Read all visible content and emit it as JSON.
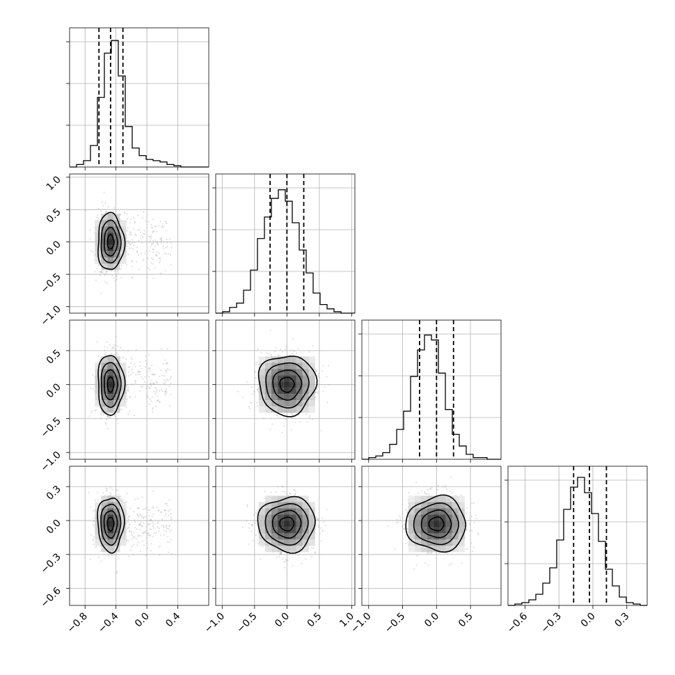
{
  "chart_data": {
    "type": "corner",
    "grid": true,
    "parameters": [
      {
        "range": [
          -1.0,
          0.8
        ],
        "ticks": [
          -0.8,
          -0.4,
          0.0,
          0.4
        ],
        "tick_labels": [
          "−0.8",
          "−0.4",
          "0.0",
          "0.4"
        ],
        "quantiles": [
          -0.62,
          -0.47,
          -0.31
        ]
      },
      {
        "range": [
          -1.1,
          1.05
        ],
        "ticks": [
          -1.0,
          -0.5,
          0.0,
          0.5,
          1.0
        ],
        "tick_labels": [
          "−1.0",
          "−0.5",
          "0.0",
          "0.5",
          "1.0"
        ],
        "quantiles": [
          -0.26,
          0.0,
          0.26
        ]
      },
      {
        "range": [
          -1.1,
          0.95
        ],
        "ticks": [
          -1.0,
          -0.5,
          0.0,
          0.5
        ],
        "tick_labels": [
          "−1.0",
          "−0.5",
          "0.0",
          "0.5"
        ],
        "quantiles": [
          -0.25,
          0.0,
          0.25
        ]
      },
      {
        "range": [
          -0.75,
          0.48
        ],
        "ticks": [
          -0.6,
          -0.3,
          0.0,
          0.3
        ],
        "tick_labels": [
          "−0.6",
          "−0.3",
          "0.0",
          "0.3"
        ],
        "quantiles": [
          -0.17,
          -0.03,
          0.12
        ]
      }
    ],
    "histograms": [
      {
        "edges_start": -1.0,
        "bin_width": 0.09,
        "counts": [
          0,
          0.02,
          0.05,
          0.17,
          0.55,
          0.9,
          1.0,
          0.72,
          0.32,
          0.15,
          0.09,
          0.06,
          0.05,
          0.04,
          0.02,
          0.01,
          0,
          0,
          0,
          0
        ],
        "ymax": 1.1
      },
      {
        "edges_start": -1.1,
        "bin_width": 0.1075,
        "counts": [
          0,
          0.01,
          0.04,
          0.07,
          0.16,
          0.3,
          0.52,
          0.67,
          0.8,
          0.86,
          0.78,
          0.63,
          0.44,
          0.28,
          0.14,
          0.06,
          0.03,
          0.01,
          0,
          0
        ],
        "ymax": 0.97
      },
      {
        "edges_start": -1.1,
        "bin_width": 0.1025,
        "counts": [
          0,
          0.01,
          0.02,
          0.04,
          0.09,
          0.18,
          0.29,
          0.5,
          0.66,
          0.75,
          0.72,
          0.52,
          0.3,
          0.15,
          0.08,
          0.03,
          0.01,
          0.01,
          0,
          0
        ],
        "ymax": 0.84
      },
      {
        "edges_start": -0.75,
        "bin_width": 0.0615,
        "counts": [
          0,
          0.01,
          0.02,
          0.04,
          0.08,
          0.16,
          0.27,
          0.47,
          0.69,
          0.85,
          0.92,
          0.81,
          0.66,
          0.46,
          0.26,
          0.14,
          0.06,
          0.02,
          0.01,
          0
        ],
        "ymax": 1.0
      }
    ],
    "contour_levels": [
      0.39,
      0.86,
      0.99
    ]
  }
}
